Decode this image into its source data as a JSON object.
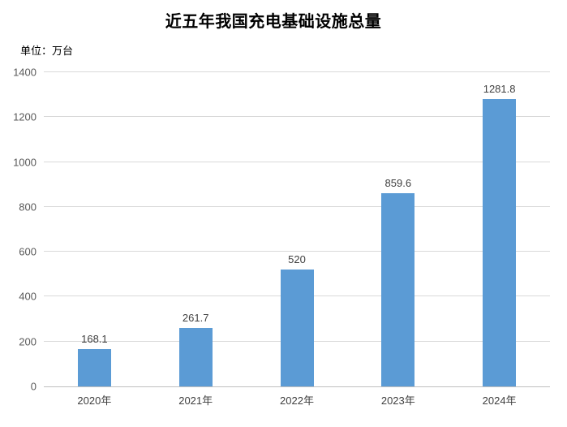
{
  "unit_label": "单位：万台",
  "colors": {
    "bar": "#5B9BD5",
    "gridline": "#D9D9D9",
    "axis_line": "#BFBFBF",
    "ytick_label": "#595959",
    "data_label": "#404040",
    "title": "#000000"
  },
  "chart_data": {
    "type": "bar",
    "title": "近五年我国充电基础设施总量",
    "unit": "万台",
    "categories": [
      "2020年",
      "2021年",
      "2022年",
      "2023年",
      "2024年"
    ],
    "values": [
      168.1,
      261.7,
      520,
      859.6,
      1281.8
    ],
    "data_labels": [
      "168.1",
      "261.7",
      "520",
      "859.6",
      "1281.8"
    ],
    "xlabel": "",
    "ylabel": "",
    "ylim": [
      0,
      1400
    ],
    "ytick_step": 200,
    "yticks": [
      0,
      200,
      400,
      600,
      800,
      1000,
      1200,
      1400
    ],
    "grid": true,
    "legend": false,
    "legend_position": "none"
  }
}
